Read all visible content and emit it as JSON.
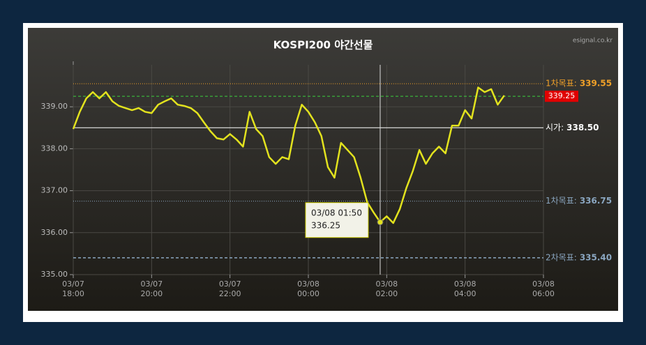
{
  "chart_data": {
    "type": "line",
    "title": "KOSPI200 야간선물",
    "source": "esignal.co.kr",
    "x": [
      "03/07 18:00",
      "03/07 18:10",
      "03/07 18:20",
      "03/07 18:30",
      "03/07 18:40",
      "03/07 18:50",
      "03/07 19:00",
      "03/07 19:10",
      "03/07 19:20",
      "03/07 19:30",
      "03/07 19:40",
      "03/07 19:50",
      "03/07 20:00",
      "03/07 20:10",
      "03/07 20:20",
      "03/07 20:30",
      "03/07 20:40",
      "03/07 20:50",
      "03/07 21:00",
      "03/07 21:10",
      "03/07 21:20",
      "03/07 21:30",
      "03/07 21:40",
      "03/07 21:50",
      "03/07 22:00",
      "03/07 22:10",
      "03/07 22:20",
      "03/07 22:30",
      "03/07 22:40",
      "03/07 22:50",
      "03/07 23:00",
      "03/07 23:10",
      "03/07 23:20",
      "03/07 23:30",
      "03/07 23:40",
      "03/07 23:50",
      "03/08 00:00",
      "03/08 00:10",
      "03/08 00:20",
      "03/08 00:30",
      "03/08 00:40",
      "03/08 00:50",
      "03/08 01:00",
      "03/08 01:10",
      "03/08 01:20",
      "03/08 01:30",
      "03/08 01:40",
      "03/08 01:50",
      "03/08 02:00",
      "03/08 02:10",
      "03/08 02:20",
      "03/08 02:30",
      "03/08 02:40",
      "03/08 02:50",
      "03/08 03:00",
      "03/08 03:10",
      "03/08 03:20",
      "03/08 03:30",
      "03/08 03:40",
      "03/08 03:50",
      "03/08 04:00",
      "03/08 04:10",
      "03/08 04:20",
      "03/08 04:30",
      "03/08 04:40",
      "03/08 04:50",
      "03/08 05:00"
    ],
    "series": [
      {
        "color": "#e2e21e",
        "values": [
          338.47,
          338.88,
          339.2,
          339.35,
          339.2,
          339.35,
          339.13,
          339.02,
          338.97,
          338.92,
          338.97,
          338.88,
          338.85,
          339.05,
          339.13,
          339.2,
          339.05,
          339.02,
          338.97,
          338.85,
          338.63,
          338.42,
          338.25,
          338.22,
          338.35,
          338.22,
          338.05,
          338.88,
          338.47,
          338.3,
          337.8,
          337.64,
          337.8,
          337.75,
          338.55,
          339.05,
          338.88,
          338.63,
          338.3,
          337.56,
          337.31,
          338.14,
          337.97,
          337.8,
          337.31,
          336.73,
          336.48,
          336.25,
          336.39,
          336.23,
          336.56,
          337.06,
          337.47,
          337.97,
          337.64,
          337.89,
          338.05,
          337.89,
          338.55,
          338.55,
          338.92,
          338.72,
          339.46,
          339.35,
          339.42,
          339.05,
          339.27
        ]
      }
    ],
    "xlim": [
      "03/07 18:00",
      "03/08 06:00"
    ],
    "xticks": [
      "03/07 18:00",
      "03/07 20:00",
      "03/07 22:00",
      "03/08 00:00",
      "03/08 02:00",
      "03/08 04:00",
      "03/08 06:00"
    ],
    "ylim": [
      335,
      340
    ],
    "yticks": [
      {
        "value": 335,
        "label": "335.00"
      },
      {
        "value": 336,
        "label": "336.00"
      },
      {
        "value": 337,
        "label": "337.00"
      },
      {
        "value": 338,
        "label": "338.00"
      },
      {
        "value": 339,
        "label": "339.00"
      }
    ],
    "grid": true,
    "levels": {
      "names": [
        "1차목표:",
        null,
        "시가:",
        "1차목표:",
        "2차목표:"
      ],
      "values": [
        339.55,
        339.25,
        338.5,
        336.75,
        335.4
      ],
      "value_labels": [
        "339.55",
        "339.25",
        "338.50",
        "336.75",
        "335.40"
      ],
      "colors": [
        "#f0a028",
        "#e00000",
        "#ffffff",
        "#8aa6c0",
        "#8aa6c0"
      ],
      "styles": [
        "dotted",
        "dashed",
        "solid",
        "dotted",
        "dashed"
      ]
    },
    "tooltip": {
      "x": "03/08 01:50",
      "value": 336.25
    }
  }
}
